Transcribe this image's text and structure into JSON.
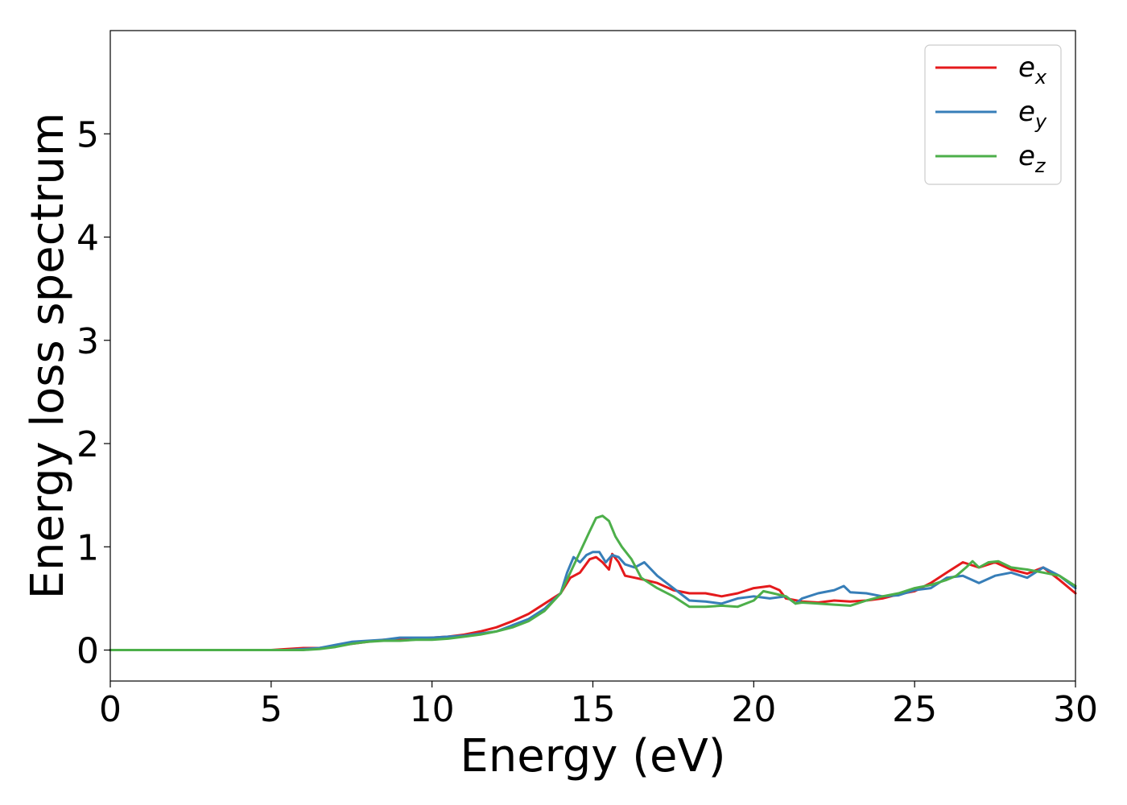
{
  "chart_data": {
    "type": "line",
    "xlabel": "Energy (eV)",
    "ylabel": "Energy loss spectrum",
    "xlim": [
      0,
      30
    ],
    "ylim": [
      -0.3,
      6.0
    ],
    "xticks": [
      0,
      5,
      10,
      15,
      20,
      25,
      30
    ],
    "yticks": [
      0,
      1,
      2,
      3,
      4,
      5
    ],
    "grid": false,
    "legend_position": "top-right",
    "series": [
      {
        "name": "e",
        "subscript": "x",
        "color": "#e41a1c",
        "x": [
          0,
          5,
          5.5,
          6,
          6.5,
          7,
          7.5,
          8,
          8.5,
          9,
          9.5,
          10,
          10.5,
          11,
          11.5,
          12,
          12.5,
          13,
          13.5,
          14,
          14.3,
          14.6,
          14.9,
          15.1,
          15.3,
          15.5,
          15.6,
          15.8,
          16,
          16.3,
          16.6,
          17,
          17.5,
          18,
          18.5,
          19,
          19.5,
          20,
          20.5,
          20.8,
          21,
          21.5,
          22,
          22.5,
          23,
          23.5,
          24,
          24.5,
          25,
          25.5,
          26,
          26.5,
          27,
          27.5,
          28,
          28.5,
          29,
          29.5,
          30
        ],
        "y": [
          0,
          0,
          0.01,
          0.02,
          0.02,
          0.04,
          0.06,
          0.08,
          0.1,
          0.1,
          0.11,
          0.12,
          0.13,
          0.15,
          0.18,
          0.22,
          0.28,
          0.35,
          0.45,
          0.55,
          0.7,
          0.75,
          0.88,
          0.9,
          0.85,
          0.78,
          0.93,
          0.85,
          0.72,
          0.7,
          0.68,
          0.65,
          0.58,
          0.55,
          0.55,
          0.52,
          0.55,
          0.6,
          0.62,
          0.58,
          0.5,
          0.47,
          0.46,
          0.48,
          0.47,
          0.48,
          0.5,
          0.54,
          0.57,
          0.65,
          0.75,
          0.85,
          0.8,
          0.85,
          0.78,
          0.74,
          0.8,
          0.68,
          0.55
        ]
      },
      {
        "name": "e",
        "subscript": "y",
        "color": "#377eb8",
        "x": [
          0,
          5,
          5.5,
          6,
          6.5,
          7,
          7.5,
          8,
          8.5,
          9,
          9.5,
          10,
          10.5,
          11,
          11.5,
          12,
          12.5,
          13,
          13.5,
          14,
          14.2,
          14.4,
          14.6,
          14.8,
          15,
          15.2,
          15.4,
          15.6,
          15.8,
          16,
          16.3,
          16.6,
          17,
          17.5,
          18,
          18.5,
          19,
          19.5,
          20,
          20.5,
          21,
          21.3,
          21.5,
          22,
          22.5,
          22.8,
          23,
          23.5,
          24,
          24.5,
          25,
          25.5,
          26,
          26.5,
          27,
          27.5,
          28,
          28.5,
          29,
          29.5,
          30
        ],
        "y": [
          0,
          0,
          0,
          0.01,
          0.02,
          0.05,
          0.08,
          0.09,
          0.1,
          0.12,
          0.12,
          0.12,
          0.13,
          0.14,
          0.16,
          0.18,
          0.24,
          0.3,
          0.4,
          0.55,
          0.75,
          0.9,
          0.85,
          0.92,
          0.95,
          0.95,
          0.85,
          0.92,
          0.9,
          0.83,
          0.8,
          0.85,
          0.72,
          0.6,
          0.48,
          0.47,
          0.45,
          0.5,
          0.52,
          0.5,
          0.52,
          0.45,
          0.5,
          0.55,
          0.58,
          0.62,
          0.56,
          0.55,
          0.52,
          0.53,
          0.58,
          0.6,
          0.7,
          0.72,
          0.65,
          0.72,
          0.75,
          0.7,
          0.8,
          0.72,
          0.6
        ]
      },
      {
        "name": "e",
        "subscript": "z",
        "color": "#4daf4a",
        "x": [
          0,
          5,
          5.5,
          6,
          6.5,
          7,
          7.5,
          8,
          8.5,
          9,
          9.5,
          10,
          10.5,
          11,
          11.5,
          12,
          12.5,
          13,
          13.5,
          14,
          14.3,
          14.6,
          14.9,
          15.1,
          15.3,
          15.5,
          15.7,
          15.9,
          16.2,
          16.5,
          17,
          17.5,
          18,
          18.5,
          19,
          19.5,
          20,
          20.3,
          20.6,
          21,
          21.3,
          21.5,
          22,
          22.5,
          23,
          23.5,
          24,
          24.5,
          25,
          25.5,
          26,
          26.3,
          26.6,
          26.8,
          27,
          27.3,
          27.6,
          28,
          28.5,
          29,
          29.5,
          30
        ],
        "y": [
          0,
          0,
          0,
          0,
          0.01,
          0.03,
          0.06,
          0.08,
          0.09,
          0.09,
          0.1,
          0.1,
          0.11,
          0.13,
          0.15,
          0.18,
          0.22,
          0.28,
          0.38,
          0.55,
          0.75,
          0.95,
          1.15,
          1.28,
          1.3,
          1.25,
          1.1,
          1.0,
          0.88,
          0.7,
          0.6,
          0.52,
          0.42,
          0.42,
          0.43,
          0.42,
          0.48,
          0.57,
          0.55,
          0.52,
          0.45,
          0.46,
          0.45,
          0.44,
          0.43,
          0.48,
          0.52,
          0.55,
          0.6,
          0.63,
          0.68,
          0.72,
          0.8,
          0.86,
          0.8,
          0.85,
          0.86,
          0.8,
          0.78,
          0.75,
          0.72,
          0.62
        ]
      }
    ]
  }
}
